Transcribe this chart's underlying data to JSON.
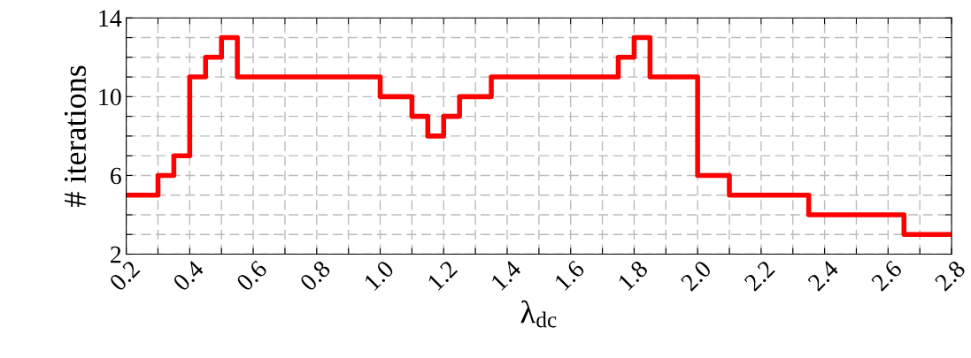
{
  "chart_data": {
    "type": "step",
    "xlabel": "λ$_{dc}$",
    "ylabel": "# iterations",
    "x": [
      0.2,
      0.3,
      0.35,
      0.4,
      0.45,
      0.5,
      0.55,
      1.0,
      1.1,
      1.15,
      1.2,
      1.25,
      1.35,
      1.75,
      1.8,
      1.85,
      2.0,
      2.1,
      2.35,
      2.65,
      2.8
    ],
    "series": [
      {
        "color": "#ff0000",
        "values": [
          5,
          6,
          7,
          11,
          12,
          13,
          11,
          10,
          9,
          8,
          9,
          10,
          11,
          12,
          13,
          11,
          6,
          5,
          4,
          3,
          3
        ]
      }
    ],
    "xlim": [
      0.2,
      2.8
    ],
    "ylim": [
      2,
      14
    ],
    "xticks": [
      0.2,
      {
        "value": 0.3,
        "label": null
      },
      0.4,
      {
        "value": 0.5,
        "label": null
      },
      0.6,
      {
        "value": 0.7,
        "label": null
      },
      0.8,
      {
        "value": 0.9,
        "label": null
      },
      {
        "value": 1.0,
        "label": "1.0"
      },
      {
        "value": 1.1,
        "label": null
      },
      1.2,
      {
        "value": 1.3,
        "label": null
      },
      1.4,
      {
        "value": 1.5,
        "label": null
      },
      1.6,
      {
        "value": 1.7,
        "label": null
      },
      1.8,
      {
        "value": 1.9,
        "label": null
      },
      {
        "value": 2.0,
        "label": "2.0"
      },
      {
        "value": 2.1,
        "label": null
      },
      2.2,
      {
        "value": 2.3,
        "label": null
      },
      2.4,
      {
        "value": 2.5,
        "label": null
      },
      2.6,
      {
        "value": 2.7,
        "label": null
      },
      2.8
    ],
    "yticks": [
      2,
      {
        "value": 3,
        "label": null
      },
      {
        "value": 4,
        "label": null
      },
      {
        "value": 5,
        "label": null
      },
      6,
      {
        "value": 7,
        "label": null
      },
      {
        "value": 8,
        "label": null
      },
      {
        "value": 9,
        "label": null
      },
      10,
      {
        "value": 11,
        "label": null
      },
      {
        "value": 12,
        "label": null
      },
      {
        "value": 13,
        "label": null
      },
      14
    ],
    "grid": true,
    "line_style": "solid",
    "marker": "none"
  }
}
